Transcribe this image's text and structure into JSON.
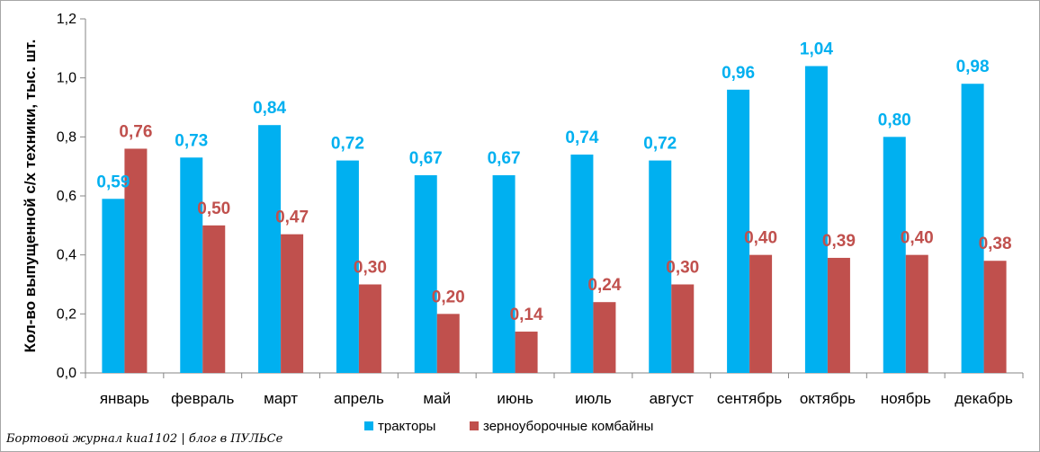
{
  "chart_data": {
    "type": "bar",
    "categories": [
      "январь",
      "февраль",
      "март",
      "апрель",
      "май",
      "июнь",
      "июль",
      "август",
      "сентябрь",
      "октябрь",
      "ноябрь",
      "декабрь"
    ],
    "series": [
      {
        "name": "тракторы",
        "color": "#00b0f0",
        "values": [
          0.59,
          0.73,
          0.84,
          0.72,
          0.67,
          0.67,
          0.74,
          0.72,
          0.96,
          1.04,
          0.8,
          0.98
        ],
        "labels": [
          "0,59",
          "0,73",
          "0,84",
          "0,72",
          "0,67",
          "0,67",
          "0,74",
          "0,72",
          "0,96",
          "1,04",
          "0,80",
          "0,98"
        ]
      },
      {
        "name": "зерноуборочные комбайны",
        "color": "#c0504d",
        "values": [
          0.76,
          0.5,
          0.47,
          0.3,
          0.2,
          0.14,
          0.24,
          0.3,
          0.4,
          0.39,
          0.4,
          0.38
        ],
        "labels": [
          "0,76",
          "0,50",
          "0,47",
          "0,30",
          "0,20",
          "0,14",
          "0,24",
          "0,30",
          "0,40",
          "0,39",
          "0,40",
          "0,38"
        ]
      }
    ],
    "ylabel": "Кол-во выпущенной с/х техники, тыс. шт.",
    "xlabel": "",
    "ylim": [
      0,
      1.2
    ],
    "yticks": [
      0,
      0.2,
      0.4,
      0.6,
      0.8,
      1.0,
      1.2
    ],
    "ytick_labels": [
      "0,0",
      "0,2",
      "0,4",
      "0,6",
      "0,8",
      "1,0",
      "1,2"
    ],
    "grid": false,
    "legend": "bottom"
  },
  "watermark": "Бортовой журнал kua1102 | блог в ПУЛЬСе"
}
